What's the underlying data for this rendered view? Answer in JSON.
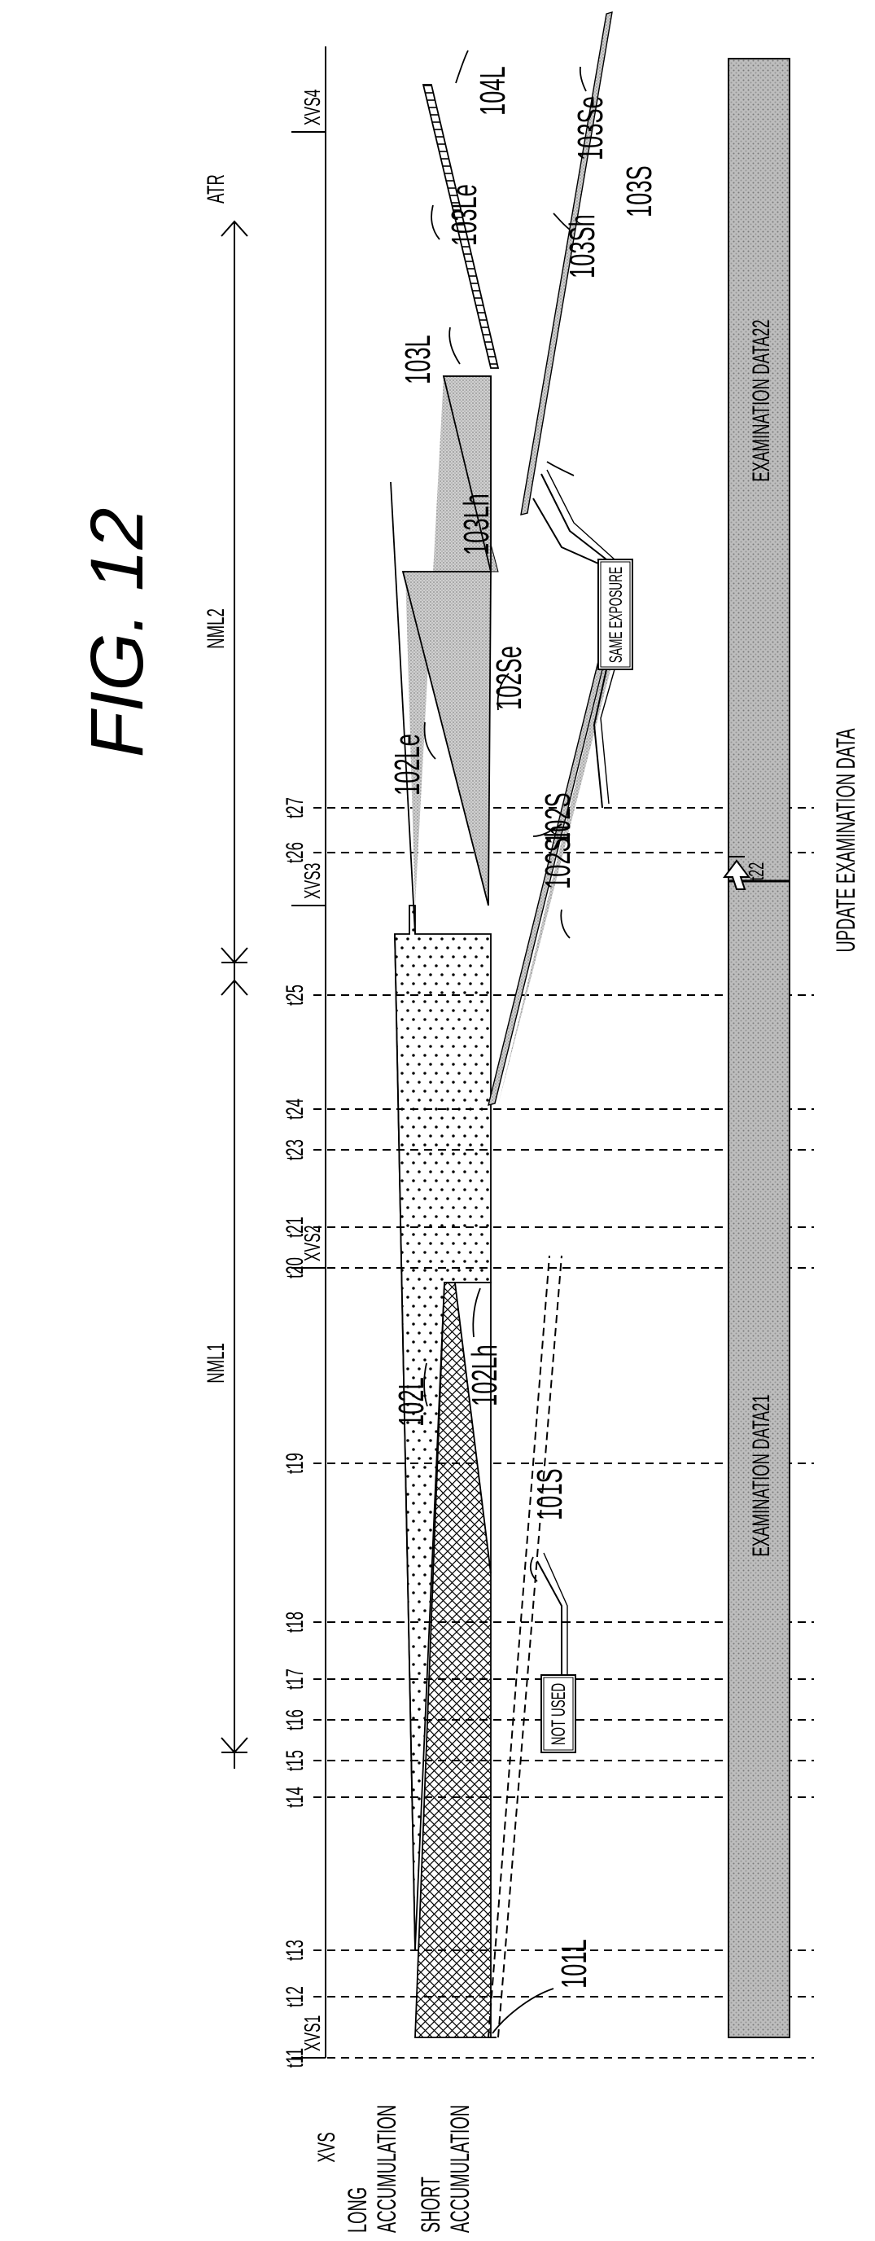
{
  "figure": {
    "title": "FIG. 12"
  },
  "rows": {
    "xvs": "XVS",
    "long_1": "LONG",
    "long_2": "ACCUMULATION",
    "short_1": "SHORT",
    "short_2": "ACCUMULATION"
  },
  "periods": {
    "nml1": "NML1",
    "nml2": "NML2",
    "atr": "ATR"
  },
  "xvs_pulses": [
    "XVS1",
    "XVS2",
    "XVS3",
    "XVS4"
  ],
  "time_labels": [
    "t11",
    "t12",
    "t13",
    "t14",
    "t15",
    "t16",
    "t17",
    "t18",
    "t19",
    "t20",
    "t21",
    "t23",
    "t24",
    "t25",
    "t26",
    "t27"
  ],
  "refs": {
    "r101L": "101L",
    "r102L": "102L",
    "r102Lh": "102Lh",
    "r102Le": "102Le",
    "r101S": "101S",
    "r102S": "102S",
    "r102Sh": "102Sh",
    "r102Se": "102Se",
    "r103L": "103L",
    "r103Le": "103Le",
    "r103Lh": "103Lh",
    "r103S": "103S",
    "r103Sh": "103Sh",
    "r103Se": "103Se",
    "r104L": "104L"
  },
  "callouts": {
    "not_used": "NOT USED",
    "same_exposure": "SAME EXPOSURE"
  },
  "data_bar": {
    "exam21": "EXAMINATION DATA21",
    "exam22": "EXAMINATION DATA22"
  },
  "update": {
    "time": "t22",
    "text": "UPDATE EXAMINATION DATA"
  }
}
